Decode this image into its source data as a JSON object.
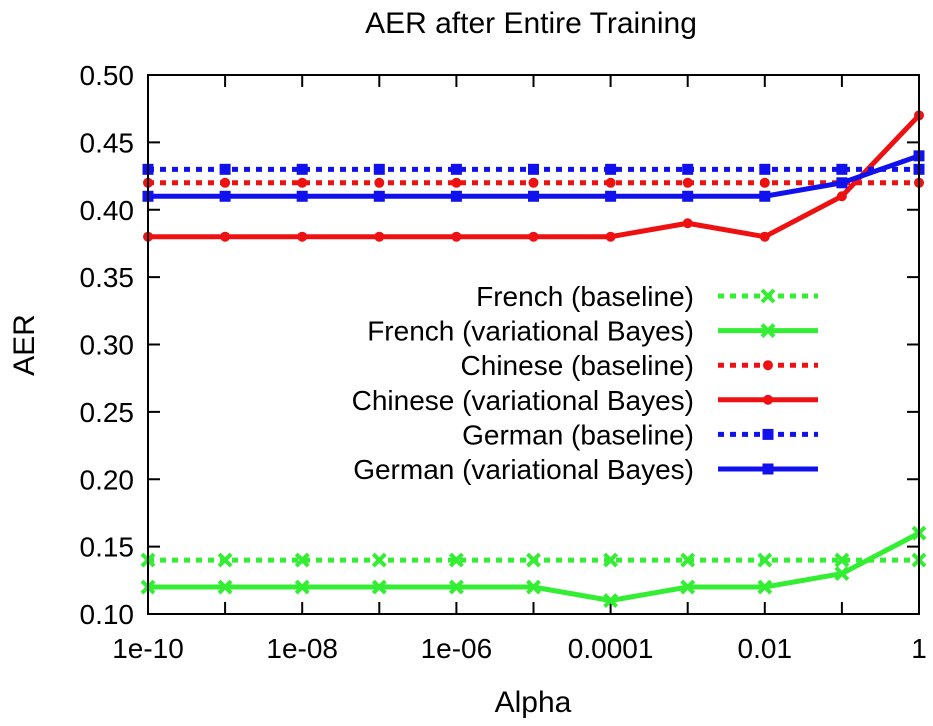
{
  "chart_data": {
    "type": "line",
    "title": "AER after Entire Training",
    "xlabel": "Alpha",
    "ylabel": "AER",
    "x_scale": "log",
    "xlim": [
      1e-10,
      1
    ],
    "ylim": [
      0.1,
      0.5
    ],
    "x": [
      1e-10,
      1e-09,
      1e-08,
      1e-07,
      1e-06,
      1e-05,
      0.0001,
      0.001,
      0.01,
      0.1,
      1
    ],
    "x_tick_labels": [
      "1e-10",
      "1e-08",
      "1e-06",
      "0.0001",
      "0.01",
      "1"
    ],
    "x_tick_values": [
      1e-10,
      1e-08,
      1e-06,
      0.0001,
      0.01,
      1
    ],
    "y_tick_labels": [
      "0.10",
      "0.15",
      "0.20",
      "0.25",
      "0.30",
      "0.35",
      "0.40",
      "0.45",
      "0.50"
    ],
    "y_tick_values": [
      0.1,
      0.15,
      0.2,
      0.25,
      0.3,
      0.35,
      0.4,
      0.45,
      0.5
    ],
    "grid": false,
    "legend_position": "right",
    "series": [
      {
        "name": "French (baseline)",
        "color": "#33ee33",
        "dash": "dotted",
        "marker": "x",
        "values": [
          0.14,
          0.14,
          0.14,
          0.14,
          0.14,
          0.14,
          0.14,
          0.14,
          0.14,
          0.14,
          0.14
        ]
      },
      {
        "name": "French (variational Bayes)",
        "color": "#33ee33",
        "dash": "solid",
        "marker": "x",
        "values": [
          0.12,
          0.12,
          0.12,
          0.12,
          0.12,
          0.12,
          0.11,
          0.12,
          0.12,
          0.13,
          0.16
        ]
      },
      {
        "name": "Chinese (baseline)",
        "color": "#ee1111",
        "dash": "dotted",
        "marker": "circle",
        "values": [
          0.42,
          0.42,
          0.42,
          0.42,
          0.42,
          0.42,
          0.42,
          0.42,
          0.42,
          0.42,
          0.42
        ]
      },
      {
        "name": "Chinese (variational Bayes)",
        "color": "#ee1111",
        "dash": "solid",
        "marker": "circle",
        "values": [
          0.38,
          0.38,
          0.38,
          0.38,
          0.38,
          0.38,
          0.38,
          0.39,
          0.38,
          0.41,
          0.47
        ]
      },
      {
        "name": "German (baseline)",
        "color": "#1111ee",
        "dash": "dotted",
        "marker": "square",
        "values": [
          0.43,
          0.43,
          0.43,
          0.43,
          0.43,
          0.43,
          0.43,
          0.43,
          0.43,
          0.43,
          0.43
        ]
      },
      {
        "name": "German (variational Bayes)",
        "color": "#1111ee",
        "dash": "solid",
        "marker": "square",
        "values": [
          0.41,
          0.41,
          0.41,
          0.41,
          0.41,
          0.41,
          0.41,
          0.41,
          0.41,
          0.42,
          0.44
        ]
      }
    ]
  }
}
